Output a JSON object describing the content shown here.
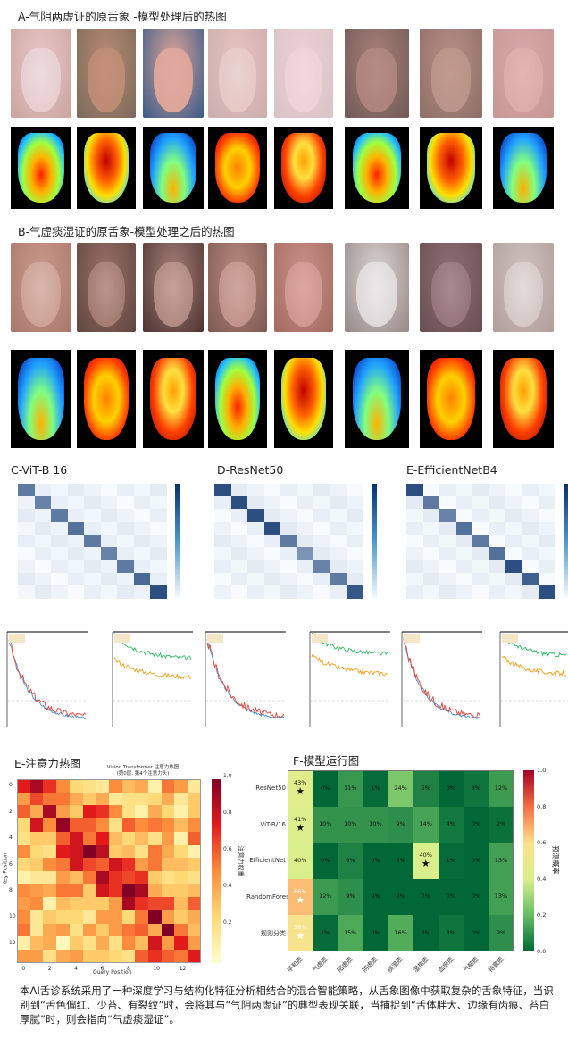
{
  "section_a": {
    "title": "A-气阴两虚证的原舌象 -模型处理后的热图",
    "photo_colors": [
      "#e8c6c8",
      "#b98a72",
      "#d9a497",
      "#e6c3c0",
      "#ecd0d5",
      "#a98079",
      "#b79087",
      "#d8a8a8"
    ],
    "tongue_colors": [
      "#eadcdf",
      "#c48f78",
      "#e2a8a0",
      "#e8d3d0",
      "#efd8de",
      "#b58c86",
      "#c29a8e",
      "#e4b4b2"
    ],
    "bg_colors": [
      "#caa49e",
      "#7a6a5c",
      "#3a5a8a",
      "#cbaeae",
      "#d9c3c6",
      "#6f5a56",
      "#8d6e66",
      "#c79795"
    ]
  },
  "section_b": {
    "title": "B-气虚痰湿证的原舌象-模型处理之后的热图",
    "photo_colors": [
      "#c99a8c",
      "#9b7066",
      "#a77f78",
      "#b98b80",
      "#c89289",
      "#d9d2d3",
      "#8e6e74",
      "#cfc1bf"
    ],
    "tongue_colors": [
      "#d9b7ad",
      "#b9978e",
      "#c4a29b",
      "#d0a8a0",
      "#dba7a0",
      "#ece8ea",
      "#a98a8e",
      "#e4dbd9"
    ],
    "bg_colors": [
      "#a9786c",
      "#5e4640",
      "#4d3432",
      "#7e5850",
      "#a36a60",
      "#988888",
      "#6a4e52",
      "#b09e9a"
    ]
  },
  "section_c": {
    "title": "C-ViT-B 16"
  },
  "section_d": {
    "title": "D-ResNet50"
  },
  "section_e1": {
    "title": "E-EfficientNetB4"
  },
  "section_e2": {
    "title": "E-注意力热图"
  },
  "section_f": {
    "title": "F-模型运行图"
  },
  "body_text": "本AI舌诊系统采用了一种深度学习与结构化特征分析相结合的混合智能策略，从舌象图像中获取复杂的舌象特征，当识别到“舌色偏红、少苔、有裂纹”时，会将其与“气阴两虚证”的典型表现关联，当捕捉到“舌体胖大、边缘有齿痕、苔白厚腻”时，则会指向“气虚痰湿证”。",
  "chart_data": [
    {
      "type": "heatmap",
      "name": "confusion-vit",
      "size": 9,
      "diagonal": [
        0.75,
        0.7,
        0.75,
        0.8,
        0.75,
        0.7,
        0.75,
        0.85,
        1.0
      ],
      "colorscale": "Blues"
    },
    {
      "type": "heatmap",
      "name": "confusion-resnet",
      "size": 9,
      "diagonal": [
        1.0,
        1.0,
        1.0,
        1.0,
        0.75,
        0.6,
        0.7,
        0.75,
        0.95
      ],
      "colorscale": "Blues"
    },
    {
      "type": "heatmap",
      "name": "confusion-efficientnet",
      "size": 9,
      "diagonal": [
        1.0,
        0.75,
        0.7,
        0.8,
        0.75,
        0.8,
        1.0,
        0.9,
        1.0
      ],
      "colorscale": "Blues"
    },
    {
      "type": "line",
      "name": "training-curves",
      "panels": [
        {
          "kind": "loss",
          "series": [
            {
              "name": "train",
              "color": "#3a8fd8",
              "start": 1.0,
              "end": 0.05
            },
            {
              "name": "val",
              "color": "#e0463a",
              "start": 1.0,
              "end": 0.08
            }
          ]
        },
        {
          "kind": "accuracy",
          "series": [
            {
              "name": "train",
              "color": "#2ebd63",
              "start": 0.98,
              "end": 0.82
            },
            {
              "name": "val",
              "color": "#f0a020",
              "start": 0.82,
              "end": 0.7
            }
          ]
        },
        {
          "kind": "loss",
          "series": [
            {
              "name": "train",
              "color": "#3a8fd8",
              "start": 1.0,
              "end": 0.05
            },
            {
              "name": "val",
              "color": "#e0463a",
              "start": 1.0,
              "end": 0.08
            }
          ]
        },
        {
          "kind": "accuracy",
          "series": [
            {
              "name": "train",
              "color": "#2ebd63",
              "start": 0.98,
              "end": 0.85
            },
            {
              "name": "val",
              "color": "#f0a020",
              "start": 0.85,
              "end": 0.72
            }
          ]
        },
        {
          "kind": "loss",
          "series": [
            {
              "name": "train",
              "color": "#3a8fd8",
              "start": 1.0,
              "end": 0.05
            },
            {
              "name": "val",
              "color": "#e0463a",
              "start": 1.0,
              "end": 0.08
            }
          ]
        },
        {
          "kind": "accuracy",
          "series": [
            {
              "name": "train",
              "color": "#2ebd63",
              "start": 0.98,
              "end": 0.84
            },
            {
              "name": "val",
              "color": "#f0a020",
              "start": 0.84,
              "end": 0.72
            }
          ]
        }
      ]
    },
    {
      "type": "heatmap",
      "name": "attention",
      "title": "Vision Transformer 注意力热图",
      "subtitle": "(第0层, 第4个注意力头)",
      "xlabel": "Query Position",
      "ylabel": "Key Position",
      "colorbar_label": "注意力权重",
      "x_ticks": [
        "0",
        "2",
        "4",
        "6",
        "8",
        "10",
        "12"
      ],
      "y_ticks": [
        "0",
        "2",
        "4",
        "6",
        "8",
        "10",
        "12"
      ],
      "colorbar_ticks": [
        "0.2",
        "0.4",
        "0.6",
        "0.8",
        "1.0"
      ],
      "values": [
        [
          0.75,
          0.9,
          0.7,
          0.5,
          0.25,
          0.2,
          0.15,
          0.5,
          0.35,
          0.4,
          0.1,
          0.55,
          0.45,
          0.15
        ],
        [
          0.45,
          0.65,
          0.55,
          0.55,
          0.4,
          0.3,
          0.4,
          0.15,
          0.2,
          0.2,
          0.25,
          0.4,
          0.15,
          0.3
        ],
        [
          0.6,
          0.4,
          0.9,
          0.45,
          0.3,
          0.75,
          0.7,
          0.5,
          0.2,
          0.1,
          0.4,
          0.25,
          0.1,
          0.3
        ],
        [
          0.25,
          0.8,
          0.5,
          0.95,
          0.6,
          0.6,
          0.5,
          0.2,
          0.6,
          0.5,
          0.55,
          0.5,
          0.35,
          0.5
        ],
        [
          0.2,
          0.3,
          0.3,
          0.6,
          0.8,
          0.55,
          0.75,
          0.35,
          0.25,
          0.35,
          0.2,
          0.45,
          0.1,
          0.6
        ],
        [
          0.5,
          0.25,
          0.2,
          0.75,
          0.8,
          1.0,
          0.85,
          0.3,
          0.35,
          0.2,
          0.55,
          0.4,
          0.25,
          0.1
        ],
        [
          0.25,
          0.3,
          0.5,
          0.55,
          0.8,
          0.65,
          0.6,
          0.8,
          0.7,
          0.45,
          0.55,
          0.35,
          0.35,
          0.3
        ],
        [
          0.1,
          0.15,
          0.15,
          0.45,
          0.35,
          0.55,
          0.9,
          0.7,
          0.65,
          0.7,
          0.3,
          0.2,
          0.25,
          0.2
        ],
        [
          0.5,
          0.45,
          0.4,
          0.55,
          0.55,
          0.3,
          0.8,
          0.7,
          1.0,
          0.9,
          0.4,
          0.3,
          0.3,
          0.35
        ],
        [
          0.45,
          0.5,
          0.1,
          0.35,
          0.3,
          0.3,
          0.3,
          0.45,
          0.9,
          0.7,
          0.65,
          0.65,
          0.35,
          0.6
        ],
        [
          0.5,
          0.15,
          0.3,
          0.25,
          0.25,
          0.15,
          0.45,
          0.45,
          0.25,
          0.55,
          1.0,
          0.45,
          0.3,
          0.4
        ],
        [
          0.55,
          0.15,
          0.4,
          0.45,
          0.2,
          0.45,
          0.3,
          0.45,
          0.55,
          0.6,
          0.4,
          1.0,
          0.55,
          0.35
        ],
        [
          0.1,
          0.35,
          0.4,
          0.05,
          0.3,
          0.2,
          0.4,
          0.2,
          0.5,
          0.35,
          0.8,
          0.45,
          0.75,
          0.45
        ],
        [
          0.45,
          0.45,
          0.2,
          0.4,
          0.45,
          0.3,
          0.3,
          0.25,
          0.2,
          0.6,
          0.7,
          0.6,
          0.55,
          0.75
        ]
      ]
    },
    {
      "type": "heatmap",
      "name": "model-prediction",
      "colorbar_label": "预测概率",
      "colorbar_ticks": [
        "0.0",
        "0.2",
        "0.4",
        "0.6",
        "0.8",
        "1.0"
      ],
      "rows": [
        "ResNet50",
        "ViT-B/16",
        "EfficientNet",
        "RandomForest",
        "规则分类"
      ],
      "cols": [
        "平和质",
        "气虚质",
        "阳虚质",
        "阴虚质",
        "痰湿质",
        "湿热质",
        "血瘀质",
        "气郁质",
        "特禀质"
      ],
      "values": [
        [
          43,
          0,
          11,
          1,
          24,
          6,
          0,
          3,
          12
        ],
        [
          41,
          10,
          10,
          10,
          9,
          14,
          4,
          0,
          2
        ],
        [
          40,
          0,
          6,
          0,
          0,
          40,
          1,
          0,
          13
        ],
        [
          66,
          12,
          9,
          0,
          0,
          0,
          0,
          0,
          13
        ],
        [
          56,
          1,
          15,
          0,
          16,
          0,
          3,
          0,
          9
        ]
      ],
      "labels": [
        [
          "43%",
          "0%",
          "11%",
          "1%",
          "24%",
          "6%",
          "0%",
          "3%",
          "12%"
        ],
        [
          "41%",
          "10%",
          "10%",
          "10%",
          "9%",
          "14%",
          "4%",
          "0%",
          "2%"
        ],
        [
          "40%",
          "0%",
          "6%",
          "0%",
          "0%",
          "40%",
          "1%",
          "0%",
          "13%"
        ],
        [
          "66%",
          "12%",
          "9%",
          "0%",
          "0%",
          "0%",
          "0%",
          "0%",
          "13%"
        ],
        [
          "56%",
          "1%",
          "15%",
          "0%",
          "16%",
          "0%",
          "3%",
          "0%",
          "9%"
        ]
      ],
      "stars": [
        [
          0,
          0
        ],
        [
          1,
          0
        ],
        [
          2,
          5
        ],
        [
          3,
          0
        ],
        [
          4,
          0
        ]
      ],
      "star_glyph": "★"
    }
  ]
}
